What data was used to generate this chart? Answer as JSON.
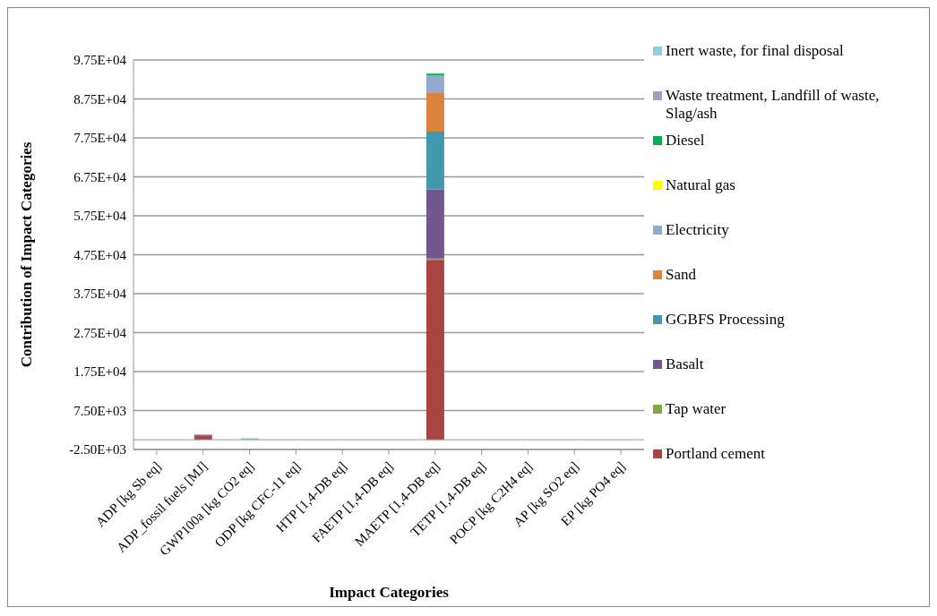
{
  "chart_data": {
    "type": "bar",
    "stacked": true,
    "xlabel": "Impact Categories",
    "ylabel": "Contribution of Impact Categories",
    "categories": [
      "ADP [kg Sb eq]",
      "ADP_fossil fuels [MJ]",
      "GWP100a [kg CO2 eq]",
      "ODP [kg CFC-11 eq]",
      "HTP [1,4-DB eq]",
      "FAETP [1,4-DB eq]",
      "MAETP [1,4-DB eq]",
      "TETP [1,4-DB eq]",
      "POCP [kg C2H4 eq]",
      "AP [kg SO2 eq]",
      "EP [kg PO4 eq]"
    ],
    "series": [
      {
        "name": "Portland cement",
        "color": "#a94442",
        "values": [
          0,
          1100,
          0,
          0,
          0,
          0,
          46200,
          0,
          0,
          0,
          0
        ]
      },
      {
        "name": "Tap water",
        "color": "#86a545",
        "values": [
          0,
          0,
          0,
          0,
          0,
          0,
          300,
          0,
          0,
          0,
          0
        ]
      },
      {
        "name": "Basalt",
        "color": "#70588f",
        "values": [
          0,
          200,
          0,
          0,
          0,
          0,
          17800,
          0,
          0,
          0,
          0
        ]
      },
      {
        "name": "GGBFS Processing",
        "color": "#4198af",
        "values": [
          0,
          0,
          0,
          0,
          0,
          0,
          14800,
          0,
          0,
          0,
          0
        ]
      },
      {
        "name": "Sand",
        "color": "#db843d",
        "values": [
          0,
          0,
          0,
          0,
          0,
          0,
          9900,
          0,
          0,
          0,
          0
        ]
      },
      {
        "name": "Electricity",
        "color": "#93a9cf",
        "values": [
          0,
          0,
          0,
          0,
          0,
          0,
          4500,
          0,
          0,
          0,
          0
        ]
      },
      {
        "name": "Natural gas",
        "color": "#ffff00",
        "values": [
          0,
          0,
          0,
          0,
          0,
          0,
          null,
          0,
          0,
          0,
          0
        ]
      },
      {
        "name": "Diesel",
        "color": "#00b050",
        "values": [
          0,
          0,
          0,
          0,
          0,
          0,
          500,
          0,
          0,
          0,
          0
        ]
      },
      {
        "name": "Waste treatment, Landfill of waste, Slag/ash",
        "color": "#a99bbd",
        "values": [
          0,
          0,
          0,
          0,
          0,
          0,
          0,
          0,
          0,
          0,
          0
        ]
      },
      {
        "name": "Inert waste, for final disposal",
        "color": "#92cddc",
        "values": [
          0,
          0,
          400,
          0,
          0,
          0,
          0,
          0,
          0,
          0,
          0
        ]
      }
    ],
    "ylim": [
      -2500,
      97500
    ],
    "yticks": [
      {
        "value": -2500,
        "label": "-2.50E+03"
      },
      {
        "value": 7500,
        "label": "7.50E+03"
      },
      {
        "value": 17500,
        "label": "1.75E+04"
      },
      {
        "value": 27500,
        "label": "2.75E+04"
      },
      {
        "value": 37500,
        "label": "3.75E+04"
      },
      {
        "value": 47500,
        "label": "4.75E+04"
      },
      {
        "value": 57500,
        "label": "5.75E+04"
      },
      {
        "value": 67500,
        "label": "6.75E+04"
      },
      {
        "value": 77500,
        "label": "7.75E+04"
      },
      {
        "value": 87500,
        "label": "8.75E+04"
      },
      {
        "value": 97500,
        "label": "9.75E+04"
      }
    ],
    "grid": "y",
    "legend": "right"
  }
}
